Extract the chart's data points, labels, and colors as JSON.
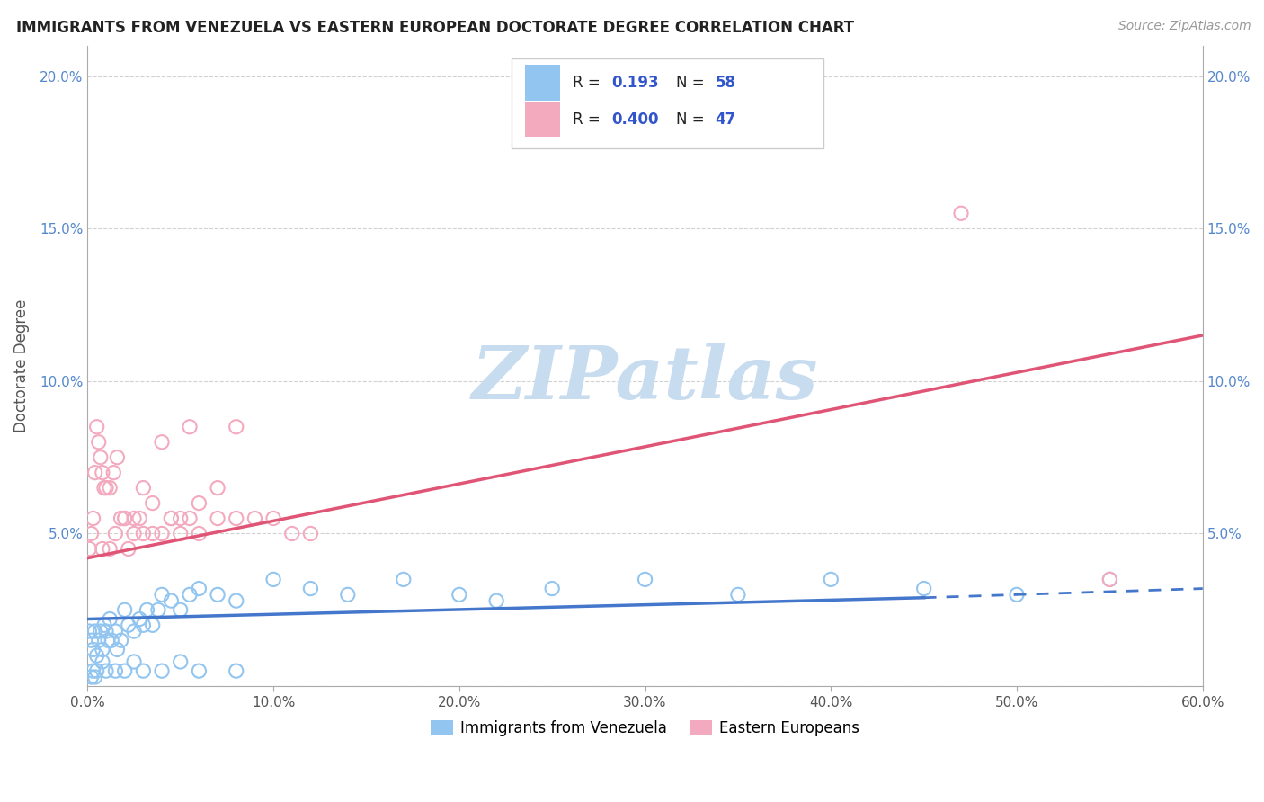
{
  "title": "IMMIGRANTS FROM VENEZUELA VS EASTERN EUROPEAN DOCTORATE DEGREE CORRELATION CHART",
  "source": "Source: ZipAtlas.com",
  "ylabel": "Doctorate Degree",
  "xlim": [
    0.0,
    60.0
  ],
  "ylim": [
    0.0,
    21.0
  ],
  "yticks": [
    0.0,
    5.0,
    10.0,
    15.0,
    20.0
  ],
  "ytick_labels": [
    "",
    "5.0%",
    "10.0%",
    "15.0%",
    "20.0%"
  ],
  "xticks": [
    0,
    10,
    20,
    30,
    40,
    50,
    60
  ],
  "xtick_labels": [
    "0.0%",
    "10.0%",
    "20.0%",
    "30.0%",
    "40.0%",
    "50.0%",
    "60.0%"
  ],
  "legend_r1": "R =  0.193",
  "legend_n1": "N = 58",
  "legend_r2": "R =  0.400",
  "legend_n2": "N = 47",
  "blue_color": "#92C5F0",
  "pink_color": "#F4AABE",
  "line_blue_color": "#4477CC",
  "line_pink_color": "#E05575",
  "watermark_text": "ZIPatlas",
  "watermark_color": "#C8DCF0",
  "blue_line_y0": 2.2,
  "blue_line_y1": 3.2,
  "pink_line_y0": 4.2,
  "pink_line_y1": 11.5,
  "blue_scatter_x": [
    0.1,
    0.2,
    0.3,
    0.4,
    0.5,
    0.6,
    0.7,
    0.8,
    0.9,
    1.0,
    1.1,
    1.2,
    1.3,
    1.5,
    1.6,
    1.8,
    2.0,
    2.2,
    2.5,
    2.8,
    3.0,
    3.2,
    3.5,
    3.8,
    4.0,
    4.5,
    5.0,
    5.5,
    6.0,
    7.0,
    8.0,
    10.0,
    12.0,
    14.0,
    17.0,
    20.0,
    22.0,
    25.0,
    30.0,
    35.0,
    40.0,
    45.0,
    50.0,
    55.0,
    0.3,
    0.5,
    0.8,
    1.0,
    1.5,
    2.0,
    2.5,
    3.0,
    4.0,
    5.0,
    6.0,
    8.0,
    0.2,
    0.4
  ],
  "blue_scatter_y": [
    1.8,
    1.5,
    1.2,
    1.8,
    1.0,
    1.5,
    1.8,
    1.2,
    2.0,
    1.8,
    1.5,
    2.2,
    1.5,
    1.8,
    1.2,
    1.5,
    2.5,
    2.0,
    1.8,
    2.2,
    2.0,
    2.5,
    2.0,
    2.5,
    3.0,
    2.8,
    2.5,
    3.0,
    3.2,
    3.0,
    2.8,
    3.5,
    3.2,
    3.0,
    3.5,
    3.0,
    2.8,
    3.2,
    3.5,
    3.0,
    3.5,
    3.2,
    3.0,
    3.5,
    0.5,
    0.5,
    0.8,
    0.5,
    0.5,
    0.5,
    0.8,
    0.5,
    0.5,
    0.8,
    0.5,
    0.5,
    0.3,
    0.3
  ],
  "pink_scatter_x": [
    0.1,
    0.2,
    0.3,
    0.4,
    0.5,
    0.6,
    0.7,
    0.8,
    0.9,
    1.0,
    1.2,
    1.4,
    1.6,
    1.8,
    2.0,
    2.2,
    2.5,
    2.8,
    3.0,
    3.5,
    4.0,
    4.5,
    5.0,
    5.5,
    6.0,
    7.0,
    8.0,
    9.0,
    10.0,
    11.0,
    12.0,
    4.0,
    5.0,
    6.0,
    7.0,
    8.0,
    3.0,
    2.0,
    1.5,
    0.8,
    1.2,
    2.5,
    3.5,
    4.5,
    5.5,
    55.0,
    47.0
  ],
  "pink_scatter_y": [
    4.5,
    5.0,
    5.5,
    7.0,
    8.5,
    8.0,
    7.5,
    7.0,
    6.5,
    6.5,
    6.5,
    7.0,
    7.5,
    5.5,
    5.5,
    4.5,
    5.0,
    5.5,
    6.5,
    6.0,
    8.0,
    5.5,
    5.5,
    8.5,
    6.0,
    5.5,
    8.5,
    5.5,
    5.5,
    5.0,
    5.0,
    5.0,
    5.0,
    5.0,
    6.5,
    5.5,
    5.0,
    5.5,
    5.0,
    4.5,
    4.5,
    5.5,
    5.0,
    5.5,
    5.5,
    3.5,
    15.5
  ]
}
